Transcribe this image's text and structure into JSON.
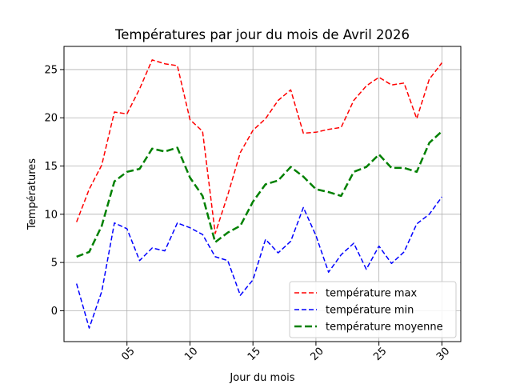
{
  "chart_data": {
    "type": "line",
    "title": "Températures par jour du mois de Avril 2026",
    "xlabel": "Jour du mois",
    "ylabel": "Températures",
    "x": [
      1,
      2,
      3,
      4,
      5,
      6,
      7,
      8,
      9,
      10,
      11,
      12,
      13,
      14,
      15,
      16,
      17,
      18,
      19,
      20,
      21,
      22,
      23,
      24,
      25,
      26,
      27,
      28,
      29,
      30
    ],
    "xlim": [
      0,
      31.5
    ],
    "ylim": [
      -3.2,
      27.4
    ],
    "xticks": [
      5,
      10,
      15,
      20,
      25,
      30
    ],
    "xtick_labels": [
      "05",
      "10",
      "15",
      "20",
      "25",
      "30"
    ],
    "yticks": [
      0,
      5,
      10,
      15,
      20,
      25
    ],
    "ytick_labels": [
      "0",
      "5",
      "10",
      "15",
      "20",
      "25"
    ],
    "grid": true,
    "legend_position": "lower right",
    "series": [
      {
        "name": "température max",
        "color": "#ff0000",
        "style": "dashed",
        "values": [
          9.2,
          12.6,
          15.1,
          20.6,
          20.4,
          23.0,
          26.0,
          25.6,
          25.4,
          19.8,
          18.6,
          8.0,
          12.0,
          16.4,
          18.7,
          19.9,
          21.8,
          22.9,
          18.4,
          18.5,
          18.8,
          19.0,
          21.8,
          23.3,
          24.2,
          23.4,
          23.6,
          19.9,
          24.0,
          25.7
        ]
      },
      {
        "name": "température min",
        "color": "#0000ff",
        "style": "dashed",
        "values": [
          2.8,
          -1.8,
          2.0,
          9.1,
          8.5,
          5.2,
          6.5,
          6.2,
          9.1,
          8.6,
          7.9,
          5.6,
          5.2,
          1.6,
          3.2,
          7.4,
          6.0,
          7.2,
          10.7,
          7.8,
          4.0,
          5.8,
          7.0,
          4.3,
          6.7,
          4.9,
          6.1,
          9.0,
          10.0,
          11.8
        ]
      },
      {
        "name": "température moyenne",
        "color": "#008000",
        "style": "dashed",
        "width": "thick",
        "values": [
          5.6,
          6.1,
          8.8,
          13.4,
          14.4,
          14.7,
          16.8,
          16.5,
          16.9,
          13.8,
          11.9,
          7.1,
          8.1,
          8.8,
          11.3,
          13.1,
          13.5,
          14.9,
          13.9,
          12.6,
          12.3,
          11.9,
          14.4,
          14.9,
          16.2,
          14.8,
          14.8,
          14.4,
          17.4,
          18.6
        ]
      }
    ]
  }
}
